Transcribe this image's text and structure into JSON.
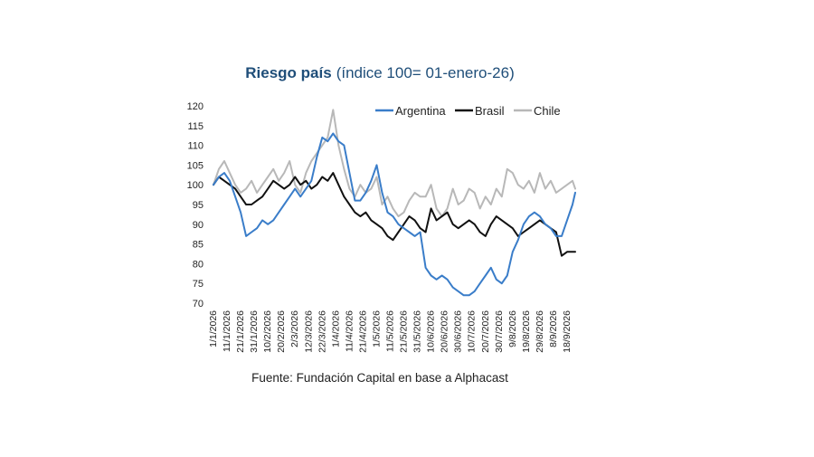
{
  "chart_data": {
    "type": "line",
    "title": "Riesgo país",
    "subtitle": "(índice 100= 01-enero-26)",
    "source": "Fuente: Fundación Capital en base a Alphacast",
    "xlabel": "",
    "ylabel": "",
    "ylim": [
      70,
      120
    ],
    "yticks": [
      70,
      75,
      80,
      85,
      90,
      95,
      100,
      105,
      110,
      115,
      120
    ],
    "xlim": [
      "1/1/2026",
      "24/9/2026"
    ],
    "xtick_labels": [
      "1/1/2026",
      "11/1/2026",
      "21/1/2026",
      "31/1/2026",
      "10/2/2026",
      "20/2/2026",
      "2/3/2026",
      "12/3/2026",
      "22/3/2026",
      "1/4/2026",
      "11/4/2026",
      "21/4/2026",
      "1/5/2026",
      "11/5/2026",
      "21/5/2026",
      "31/5/2026",
      "10/6/2026",
      "20/6/2026",
      "30/6/2026",
      "10/7/2026",
      "20/7/2026",
      "30/7/2026",
      "9/8/2026",
      "19/8/2026",
      "29/8/2026",
      "8/9/2026",
      "18/9/2026"
    ],
    "grid": false,
    "legend_position": "top-right",
    "series": [
      {
        "name": "Argentina",
        "color": "#3a7dc9",
        "x": [
          "1/1/2026",
          "5/1/2026",
          "9/1/2026",
          "13/1/2026",
          "17/1/2026",
          "21/1/2026",
          "25/1/2026",
          "29/1/2026",
          "2/2/2026",
          "6/2/2026",
          "10/2/2026",
          "14/2/2026",
          "18/2/2026",
          "22/2/2026",
          "26/2/2026",
          "2/3/2026",
          "6/3/2026",
          "10/3/2026",
          "14/3/2026",
          "18/3/2026",
          "22/3/2026",
          "26/3/2026",
          "30/3/2026",
          "3/4/2026",
          "7/4/2026",
          "11/4/2026",
          "15/4/2026",
          "19/4/2026",
          "23/4/2026",
          "27/4/2026",
          "1/5/2026",
          "5/5/2026",
          "9/5/2026",
          "13/5/2026",
          "17/5/2026",
          "21/5/2026",
          "25/5/2026",
          "29/5/2026",
          "2/6/2026",
          "6/6/2026",
          "10/6/2026",
          "14/6/2026",
          "18/6/2026",
          "22/6/2026",
          "26/6/2026",
          "30/6/2026",
          "4/7/2026",
          "8/7/2026",
          "12/7/2026",
          "16/7/2026",
          "20/7/2026",
          "24/7/2026",
          "28/7/2026",
          "1/8/2026",
          "5/8/2026",
          "9/8/2026",
          "13/8/2026",
          "17/8/2026",
          "21/8/2026",
          "25/8/2026",
          "29/8/2026",
          "2/9/2026",
          "6/9/2026",
          "10/9/2026",
          "14/9/2026",
          "18/9/2026",
          "22/9/2026",
          "24/9/2026"
        ],
        "values": [
          100,
          102,
          103,
          101,
          97,
          93,
          87,
          88,
          89,
          91,
          90,
          91,
          93,
          95,
          97,
          99,
          97,
          99,
          101,
          107,
          112,
          111,
          113,
          111,
          110,
          103,
          96,
          96,
          98,
          101,
          105,
          98,
          93,
          92,
          90,
          89,
          88,
          87,
          88,
          79,
          77,
          76,
          77,
          76,
          74,
          73,
          72,
          72,
          73,
          75,
          77,
          79,
          76,
          75,
          77,
          83,
          86,
          90,
          92,
          93,
          92,
          90,
          89,
          87,
          87,
          91,
          95,
          98
        ]
      },
      {
        "name": "Brasil",
        "color": "#111111",
        "x": [
          "1/1/2026",
          "5/1/2026",
          "9/1/2026",
          "13/1/2026",
          "17/1/2026",
          "21/1/2026",
          "25/1/2026",
          "29/1/2026",
          "2/2/2026",
          "6/2/2026",
          "10/2/2026",
          "14/2/2026",
          "18/2/2026",
          "22/2/2026",
          "26/2/2026",
          "2/3/2026",
          "6/3/2026",
          "10/3/2026",
          "14/3/2026",
          "18/3/2026",
          "22/3/2026",
          "26/3/2026",
          "30/3/2026",
          "3/4/2026",
          "7/4/2026",
          "11/4/2026",
          "15/4/2026",
          "19/4/2026",
          "23/4/2026",
          "27/4/2026",
          "1/5/2026",
          "5/5/2026",
          "9/5/2026",
          "13/5/2026",
          "17/5/2026",
          "21/5/2026",
          "25/5/2026",
          "29/5/2026",
          "2/6/2026",
          "6/6/2026",
          "10/6/2026",
          "14/6/2026",
          "18/6/2026",
          "22/6/2026",
          "26/6/2026",
          "30/6/2026",
          "4/7/2026",
          "8/7/2026",
          "12/7/2026",
          "16/7/2026",
          "20/7/2026",
          "24/7/2026",
          "28/7/2026",
          "1/8/2026",
          "5/8/2026",
          "9/8/2026",
          "13/8/2026",
          "17/8/2026",
          "21/8/2026",
          "25/8/2026",
          "29/8/2026",
          "2/9/2026",
          "6/9/2026",
          "10/9/2026",
          "14/9/2026",
          "18/9/2026",
          "22/9/2026",
          "24/9/2026"
        ],
        "values": [
          100,
          102,
          101,
          100,
          99,
          97,
          95,
          95,
          96,
          97,
          99,
          101,
          100,
          99,
          100,
          102,
          100,
          101,
          99,
          100,
          102,
          101,
          103,
          100,
          97,
          95,
          93,
          92,
          93,
          91,
          90,
          89,
          87,
          86,
          88,
          90,
          92,
          91,
          89,
          88,
          94,
          91,
          92,
          93,
          90,
          89,
          90,
          91,
          90,
          88,
          87,
          90,
          92,
          91,
          90,
          89,
          87,
          88,
          89,
          90,
          91,
          90,
          89,
          88,
          82,
          83,
          83,
          83
        ]
      },
      {
        "name": "Chile",
        "color": "#b8b8b8",
        "x": [
          "1/1/2026",
          "5/1/2026",
          "9/1/2026",
          "13/1/2026",
          "17/1/2026",
          "21/1/2026",
          "25/1/2026",
          "29/1/2026",
          "2/2/2026",
          "6/2/2026",
          "10/2/2026",
          "14/2/2026",
          "18/2/2026",
          "22/2/2026",
          "26/2/2026",
          "2/3/2026",
          "6/3/2026",
          "10/3/2026",
          "14/3/2026",
          "18/3/2026",
          "22/3/2026",
          "26/3/2026",
          "30/3/2026",
          "3/4/2026",
          "7/4/2026",
          "11/4/2026",
          "15/4/2026",
          "19/4/2026",
          "23/4/2026",
          "27/4/2026",
          "1/5/2026",
          "5/5/2026",
          "9/5/2026",
          "13/5/2026",
          "17/5/2026",
          "21/5/2026",
          "25/5/2026",
          "29/5/2026",
          "2/6/2026",
          "6/6/2026",
          "10/6/2026",
          "14/6/2026",
          "18/6/2026",
          "22/6/2026",
          "26/6/2026",
          "30/6/2026",
          "4/7/2026",
          "8/7/2026",
          "12/7/2026",
          "16/7/2026",
          "20/7/2026",
          "24/7/2026",
          "28/7/2026",
          "1/8/2026",
          "5/8/2026",
          "9/8/2026",
          "13/8/2026",
          "17/8/2026",
          "21/8/2026",
          "25/8/2026",
          "29/8/2026",
          "2/9/2026",
          "6/9/2026",
          "10/9/2026",
          "14/9/2026",
          "18/9/2026",
          "22/9/2026",
          "24/9/2026"
        ],
        "values": [
          100,
          104,
          106,
          103,
          100,
          98,
          99,
          101,
          98,
          100,
          102,
          104,
          101,
          103,
          106,
          100,
          98,
          103,
          106,
          108,
          110,
          112,
          119,
          110,
          104,
          99,
          97,
          100,
          98,
          99,
          102,
          95,
          97,
          94,
          92,
          93,
          96,
          98,
          97,
          97,
          100,
          94,
          92,
          94,
          99,
          95,
          96,
          99,
          98,
          94,
          97,
          95,
          99,
          97,
          104,
          103,
          100,
          99,
          101,
          98,
          103,
          99,
          101,
          98,
          99,
          100,
          101,
          99
        ]
      }
    ]
  }
}
